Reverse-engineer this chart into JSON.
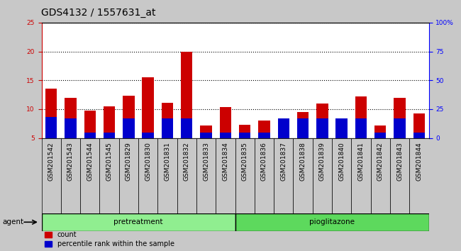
{
  "title": "GDS4132 / 1557631_at",
  "samples": [
    "GSM201542",
    "GSM201543",
    "GSM201544",
    "GSM201545",
    "GSM201829",
    "GSM201830",
    "GSM201831",
    "GSM201832",
    "GSM201833",
    "GSM201834",
    "GSM201835",
    "GSM201836",
    "GSM201837",
    "GSM201838",
    "GSM201839",
    "GSM201840",
    "GSM201841",
    "GSM201842",
    "GSM201843",
    "GSM201844"
  ],
  "count_values": [
    13.5,
    12.0,
    9.8,
    10.5,
    12.3,
    15.5,
    11.1,
    20.0,
    7.2,
    10.4,
    7.3,
    8.0,
    7.5,
    9.5,
    11.0,
    7.2,
    12.2,
    7.2,
    12.0,
    9.3
  ],
  "percentile_values": [
    18,
    17,
    5,
    5,
    17,
    5,
    17,
    17,
    5,
    5,
    5,
    5,
    17,
    17,
    17,
    17,
    17,
    5,
    17,
    5
  ],
  "pretreatment_count": 10,
  "pioglitazone_count": 10,
  "group_labels": [
    "pretreatment",
    "pioglitazone"
  ],
  "bar_color_red": "#CC0000",
  "bar_color_blue": "#0000CC",
  "ylim_left": [
    5,
    25
  ],
  "ylim_right": [
    0,
    100
  ],
  "yticks_left": [
    5,
    10,
    15,
    20,
    25
  ],
  "yticks_right": [
    0,
    25,
    50,
    75,
    100
  ],
  "ytick_labels_right": [
    "0",
    "25",
    "50",
    "75",
    "100%"
  ],
  "background_color": "#C8C8C8",
  "plot_bg_color": "#FFFFFF",
  "title_fontsize": 10,
  "tick_fontsize": 6.5,
  "legend_label_count": "count",
  "legend_label_percentile": "percentile rank within the sample",
  "agent_label": "agent",
  "bar_width": 0.6
}
